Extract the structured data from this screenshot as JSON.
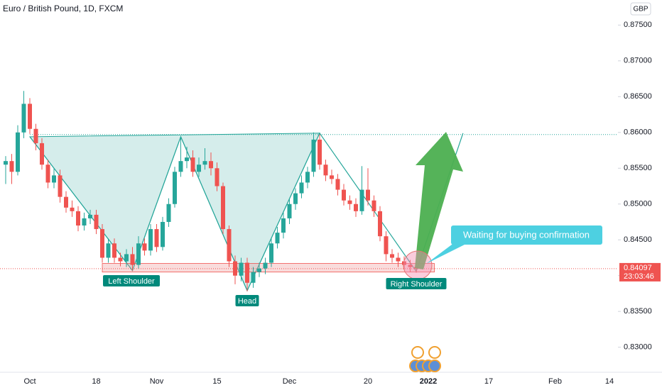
{
  "chart_data": {
    "type": "candlestick",
    "title": "Euro / British Pound, 1D, FXCM",
    "currency": "GBP",
    "categories": [
      null,
      null,
      null,
      null,
      "Oct",
      null,
      null,
      null,
      null,
      null,
      null,
      null,
      null,
      null,
      null,
      "18",
      null,
      null,
      null,
      null,
      null,
      null,
      null,
      null,
      null,
      "Nov",
      null,
      null,
      null,
      null,
      null,
      null,
      null,
      null,
      null,
      "15",
      null,
      null,
      null,
      null,
      null,
      null,
      null,
      null,
      null,
      null,
      null,
      "Dec",
      null,
      null,
      null,
      null,
      null,
      null,
      null,
      null,
      null,
      null,
      null,
      null,
      "20",
      null,
      null,
      null,
      null,
      null,
      null,
      null,
      null,
      null,
      "2022",
      null,
      null,
      null,
      null,
      null,
      null,
      null,
      null,
      null,
      "17",
      null,
      null,
      null,
      null,
      null,
      null,
      null,
      null,
      null,
      null,
      "Feb",
      null,
      null,
      null,
      null,
      null,
      null,
      null,
      null,
      "14",
      null
    ],
    "open": [
      0.8555,
      0.856,
      0.8545,
      0.86,
      0.864,
      0.8605,
      0.8585,
      0.8555,
      0.853,
      0.854,
      0.851,
      0.8495,
      0.849,
      0.847,
      0.848,
      0.8485,
      0.8465,
      0.8425,
      0.8445,
      0.8425,
      0.842,
      0.843,
      0.8415,
      0.8445,
      0.8435,
      0.8465,
      0.844,
      0.8475,
      0.85,
      0.8545,
      0.856,
      0.8565,
      0.8545,
      0.8555,
      0.856,
      0.855,
      0.8525,
      0.8465,
      0.842,
      0.84,
      0.8418,
      0.839,
      0.8405,
      0.841,
      0.8418,
      0.8445,
      0.846,
      0.848,
      0.85,
      0.8515,
      0.853,
      0.8545,
      0.859,
      0.8555,
      0.854,
      0.8535,
      0.852,
      0.8505,
      0.85,
      0.849,
      0.852,
      0.8505,
      0.849,
      0.8455,
      0.843,
      0.8425,
      0.842,
      0.8415,
      0.8412,
      null,
      null,
      null,
      null,
      null,
      null,
      null,
      null,
      null,
      null,
      null,
      null,
      null,
      null,
      null,
      null,
      null,
      null,
      null,
      null,
      null,
      null,
      null,
      null,
      null,
      null,
      null,
      null,
      null,
      null,
      null,
      null,
      null
    ],
    "high": [
      0.8567,
      0.857,
      0.861,
      0.8658,
      0.8648,
      0.8612,
      0.8592,
      0.8562,
      0.855,
      0.8548,
      0.8518,
      0.8505,
      0.8497,
      0.8488,
      0.8492,
      0.8492,
      0.8472,
      0.8452,
      0.8452,
      0.8432,
      0.8437,
      0.844,
      0.8455,
      0.8452,
      0.8472,
      0.8472,
      0.8482,
      0.8508,
      0.8552,
      0.8594,
      0.858,
      0.8575,
      0.8565,
      0.8578,
      0.8572,
      0.8558,
      0.853,
      0.847,
      0.8428,
      0.8425,
      0.8425,
      0.8412,
      0.8418,
      0.8425,
      0.8452,
      0.8468,
      0.8488,
      0.8508,
      0.8522,
      0.854,
      0.8552,
      0.86,
      0.8597,
      0.8562,
      0.8548,
      0.8542,
      0.8528,
      0.8512,
      0.8508,
      0.8553,
      0.855,
      0.8512,
      0.8497,
      0.8462,
      0.8437,
      0.8432,
      0.8427,
      0.8422,
      0.8418,
      null,
      null,
      null,
      null,
      null,
      null,
      null,
      null,
      null,
      null,
      null,
      null,
      null,
      null,
      null,
      null,
      null,
      null,
      null,
      null,
      null,
      null,
      null,
      null,
      null,
      null,
      null,
      null,
      null,
      null,
      null,
      null,
      null
    ],
    "low": [
      0.8528,
      0.8528,
      0.854,
      0.8592,
      0.8598,
      0.8575,
      0.8548,
      0.8522,
      0.8522,
      0.8502,
      0.8488,
      0.8482,
      0.8462,
      0.8463,
      0.8472,
      0.8458,
      0.8418,
      0.8418,
      0.8418,
      0.8413,
      0.8412,
      0.8407,
      0.841,
      0.8428,
      0.8428,
      0.8433,
      0.8435,
      0.8468,
      0.8495,
      0.8538,
      0.855,
      0.8538,
      0.8538,
      0.8548,
      0.854,
      0.8518,
      0.8458,
      0.8412,
      0.8388,
      0.8392,
      0.8378,
      0.8383,
      0.8398,
      0.8402,
      0.8412,
      0.8438,
      0.8452,
      0.8472,
      0.8492,
      0.8508,
      0.8522,
      0.8538,
      0.8548,
      0.8532,
      0.8528,
      0.8512,
      0.8498,
      0.8492,
      0.8482,
      0.8485,
      0.8498,
      0.8482,
      0.8448,
      0.842,
      0.8418,
      0.8412,
      0.8408,
      0.8405,
      0.8404,
      null,
      null,
      null,
      null,
      null,
      null,
      null,
      null,
      null,
      null,
      null,
      null,
      null,
      null,
      null,
      null,
      null,
      null,
      null,
      null,
      null,
      null,
      null,
      null,
      null,
      null,
      null,
      null,
      null,
      null,
      null,
      null,
      null
    ],
    "close": [
      0.856,
      0.8545,
      0.86,
      0.864,
      0.8605,
      0.8585,
      0.8555,
      0.853,
      0.854,
      0.851,
      0.8495,
      0.849,
      0.847,
      0.848,
      0.8485,
      0.8465,
      0.8425,
      0.8445,
      0.8425,
      0.842,
      0.843,
      0.8415,
      0.8445,
      0.8435,
      0.8465,
      0.844,
      0.8475,
      0.85,
      0.8545,
      0.856,
      0.8565,
      0.8545,
      0.8555,
      0.856,
      0.855,
      0.8525,
      0.8465,
      0.842,
      0.84,
      0.8418,
      0.839,
      0.8405,
      0.841,
      0.8418,
      0.8445,
      0.846,
      0.848,
      0.85,
      0.8515,
      0.853,
      0.8545,
      0.859,
      0.8555,
      0.854,
      0.8535,
      0.852,
      0.8505,
      0.85,
      0.849,
      0.852,
      0.8505,
      0.849,
      0.8455,
      0.843,
      0.8425,
      0.842,
      0.8415,
      0.8412,
      0.84097,
      null,
      null,
      null,
      null,
      null,
      null,
      null,
      null,
      null,
      null,
      null,
      null,
      null,
      null,
      null,
      null,
      null,
      null,
      null,
      null,
      null,
      null,
      null,
      null,
      null,
      null,
      null,
      null,
      null,
      null,
      null,
      null,
      null
    ],
    "up_color": "#26a69a",
    "down_color": "#ef5350",
    "ylim": [
      0.8265,
      0.8785
    ],
    "yticks": [
      {
        "value": 0.83,
        "label": "0.83000"
      },
      {
        "value": 0.835,
        "label": "0.83500"
      },
      {
        "value": 0.84,
        "label": "0.84000"
      },
      {
        "value": 0.845,
        "label": "0.84500"
      },
      {
        "value": 0.85,
        "label": "0.85000"
      },
      {
        "value": 0.855,
        "label": "0.85500"
      },
      {
        "value": 0.86,
        "label": "0.86000"
      },
      {
        "value": 0.865,
        "label": "0.86500"
      },
      {
        "value": 0.87,
        "label": "0.87000"
      },
      {
        "value": 0.875,
        "label": "0.87500"
      }
    ],
    "grid": false,
    "last_price": 0.84097,
    "countdown": "23:03:46",
    "pattern": {
      "x": [
        4,
        21,
        29,
        40,
        52,
        68,
        75.75
      ],
      "y": [
        0.8594,
        0.8407,
        0.8594,
        0.8379,
        0.8599,
        0.8406,
        0.8599
      ]
    },
    "resistance": 0.8597,
    "support_zone": [
      0.8405,
      0.8417
    ],
    "support_span": [
      16,
      71
    ],
    "annotations": [
      "Left Shoulder",
      "Head",
      "Right Shoulder",
      "Waiting for buying confirmation"
    ]
  }
}
